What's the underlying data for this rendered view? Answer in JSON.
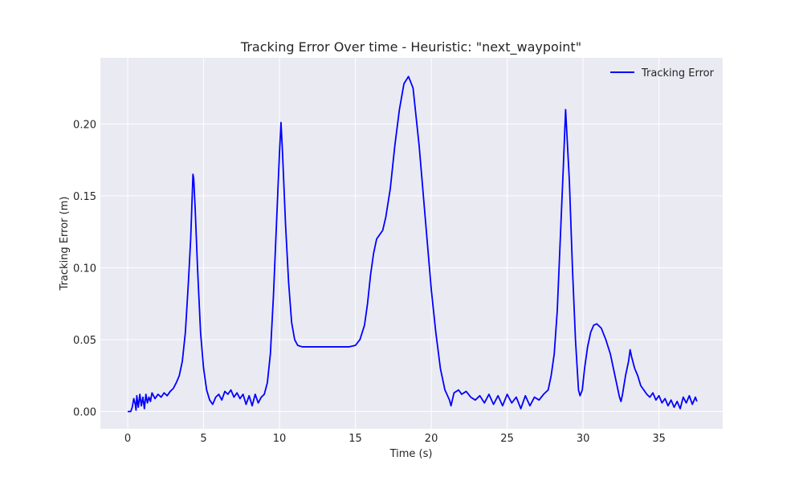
{
  "colors": {
    "plot_background": "#eaeaf2",
    "grid": "#ffffff",
    "series": "#0000ff",
    "text": "#262626"
  },
  "chart_data": {
    "type": "line",
    "title": "Tracking Error Over time - Heuristic: \"next_waypoint\"",
    "xlabel": "Time (s)",
    "ylabel": "Tracking Error (m)",
    "xlim": [
      -1.8,
      39.2
    ],
    "ylim": [
      -0.012,
      0.246
    ],
    "x_ticks": [
      0,
      5,
      10,
      15,
      20,
      25,
      30,
      35
    ],
    "x_tick_labels": [
      "0",
      "5",
      "10",
      "15",
      "20",
      "25",
      "30",
      "35"
    ],
    "y_ticks": [
      0.0,
      0.05,
      0.1,
      0.15,
      0.2
    ],
    "y_tick_labels": [
      "0.00",
      "0.05",
      "0.10",
      "0.15",
      "0.20"
    ],
    "grid": true,
    "legend_position": "top-right",
    "series": [
      {
        "name": "Tracking Error",
        "color": "#0000ff",
        "points": [
          [
            0.0,
            0.0
          ],
          [
            0.2,
            0.0
          ],
          [
            0.3,
            0.003
          ],
          [
            0.4,
            0.009
          ],
          [
            0.5,
            0.005
          ],
          [
            0.55,
            0.001
          ],
          [
            0.6,
            0.011
          ],
          [
            0.7,
            0.003
          ],
          [
            0.8,
            0.012
          ],
          [
            0.9,
            0.004
          ],
          [
            1.0,
            0.01
          ],
          [
            1.1,
            0.002
          ],
          [
            1.2,
            0.012
          ],
          [
            1.3,
            0.006
          ],
          [
            1.4,
            0.01
          ],
          [
            1.5,
            0.007
          ],
          [
            1.6,
            0.013
          ],
          [
            1.8,
            0.009
          ],
          [
            2.0,
            0.012
          ],
          [
            2.2,
            0.01
          ],
          [
            2.4,
            0.013
          ],
          [
            2.6,
            0.011
          ],
          [
            2.8,
            0.014
          ],
          [
            3.0,
            0.016
          ],
          [
            3.2,
            0.02
          ],
          [
            3.4,
            0.025
          ],
          [
            3.6,
            0.035
          ],
          [
            3.8,
            0.055
          ],
          [
            4.0,
            0.09
          ],
          [
            4.15,
            0.12
          ],
          [
            4.25,
            0.15
          ],
          [
            4.3,
            0.165
          ],
          [
            4.35,
            0.162
          ],
          [
            4.45,
            0.14
          ],
          [
            4.6,
            0.1
          ],
          [
            4.8,
            0.055
          ],
          [
            5.0,
            0.03
          ],
          [
            5.2,
            0.015
          ],
          [
            5.4,
            0.008
          ],
          [
            5.6,
            0.005
          ],
          [
            5.8,
            0.01
          ],
          [
            6.0,
            0.012
          ],
          [
            6.2,
            0.008
          ],
          [
            6.4,
            0.014
          ],
          [
            6.6,
            0.012
          ],
          [
            6.8,
            0.015
          ],
          [
            7.0,
            0.01
          ],
          [
            7.2,
            0.013
          ],
          [
            7.4,
            0.009
          ],
          [
            7.6,
            0.012
          ],
          [
            7.8,
            0.005
          ],
          [
            8.0,
            0.011
          ],
          [
            8.2,
            0.004
          ],
          [
            8.4,
            0.012
          ],
          [
            8.6,
            0.006
          ],
          [
            8.8,
            0.01
          ],
          [
            9.0,
            0.012
          ],
          [
            9.2,
            0.02
          ],
          [
            9.4,
            0.04
          ],
          [
            9.6,
            0.08
          ],
          [
            9.8,
            0.13
          ],
          [
            10.0,
            0.18
          ],
          [
            10.1,
            0.201
          ],
          [
            10.2,
            0.18
          ],
          [
            10.4,
            0.13
          ],
          [
            10.6,
            0.09
          ],
          [
            10.8,
            0.062
          ],
          [
            11.0,
            0.05
          ],
          [
            11.2,
            0.046
          ],
          [
            11.5,
            0.045
          ],
          [
            12.0,
            0.045
          ],
          [
            13.0,
            0.045
          ],
          [
            14.0,
            0.045
          ],
          [
            14.6,
            0.045
          ],
          [
            15.0,
            0.046
          ],
          [
            15.3,
            0.05
          ],
          [
            15.6,
            0.06
          ],
          [
            15.8,
            0.075
          ],
          [
            16.0,
            0.095
          ],
          [
            16.2,
            0.11
          ],
          [
            16.4,
            0.12
          ],
          [
            16.6,
            0.123
          ],
          [
            16.8,
            0.126
          ],
          [
            17.0,
            0.135
          ],
          [
            17.3,
            0.155
          ],
          [
            17.6,
            0.185
          ],
          [
            17.9,
            0.21
          ],
          [
            18.2,
            0.228
          ],
          [
            18.5,
            0.233
          ],
          [
            18.8,
            0.225
          ],
          [
            19.0,
            0.205
          ],
          [
            19.2,
            0.185
          ],
          [
            19.4,
            0.16
          ],
          [
            19.6,
            0.135
          ],
          [
            19.8,
            0.11
          ],
          [
            20.0,
            0.085
          ],
          [
            20.3,
            0.055
          ],
          [
            20.6,
            0.03
          ],
          [
            20.9,
            0.015
          ],
          [
            21.2,
            0.008
          ],
          [
            21.3,
            0.004
          ],
          [
            21.5,
            0.013
          ],
          [
            21.8,
            0.015
          ],
          [
            22.0,
            0.012
          ],
          [
            22.3,
            0.014
          ],
          [
            22.6,
            0.01
          ],
          [
            22.9,
            0.008
          ],
          [
            23.2,
            0.011
          ],
          [
            23.5,
            0.006
          ],
          [
            23.8,
            0.012
          ],
          [
            24.1,
            0.005
          ],
          [
            24.4,
            0.011
          ],
          [
            24.7,
            0.004
          ],
          [
            25.0,
            0.012
          ],
          [
            25.3,
            0.006
          ],
          [
            25.6,
            0.01
          ],
          [
            25.9,
            0.002
          ],
          [
            26.2,
            0.011
          ],
          [
            26.5,
            0.004
          ],
          [
            26.8,
            0.01
          ],
          [
            27.1,
            0.008
          ],
          [
            27.4,
            0.012
          ],
          [
            27.7,
            0.015
          ],
          [
            27.9,
            0.025
          ],
          [
            28.1,
            0.04
          ],
          [
            28.3,
            0.07
          ],
          [
            28.5,
            0.12
          ],
          [
            28.7,
            0.17
          ],
          [
            28.85,
            0.21
          ],
          [
            28.95,
            0.19
          ],
          [
            29.1,
            0.16
          ],
          [
            29.3,
            0.1
          ],
          [
            29.5,
            0.05
          ],
          [
            29.7,
            0.015
          ],
          [
            29.8,
            0.011
          ],
          [
            29.95,
            0.015
          ],
          [
            30.1,
            0.03
          ],
          [
            30.3,
            0.045
          ],
          [
            30.5,
            0.055
          ],
          [
            30.7,
            0.06
          ],
          [
            30.9,
            0.061
          ],
          [
            31.2,
            0.058
          ],
          [
            31.5,
            0.05
          ],
          [
            31.8,
            0.04
          ],
          [
            32.0,
            0.03
          ],
          [
            32.2,
            0.02
          ],
          [
            32.4,
            0.01
          ],
          [
            32.5,
            0.007
          ],
          [
            32.6,
            0.012
          ],
          [
            32.8,
            0.025
          ],
          [
            33.0,
            0.035
          ],
          [
            33.1,
            0.043
          ],
          [
            33.2,
            0.038
          ],
          [
            33.4,
            0.03
          ],
          [
            33.6,
            0.025
          ],
          [
            33.8,
            0.018
          ],
          [
            34.0,
            0.015
          ],
          [
            34.2,
            0.012
          ],
          [
            34.4,
            0.01
          ],
          [
            34.6,
            0.013
          ],
          [
            34.8,
            0.008
          ],
          [
            35.0,
            0.011
          ],
          [
            35.2,
            0.006
          ],
          [
            35.4,
            0.009
          ],
          [
            35.6,
            0.004
          ],
          [
            35.8,
            0.008
          ],
          [
            36.0,
            0.003
          ],
          [
            36.2,
            0.007
          ],
          [
            36.4,
            0.002
          ],
          [
            36.6,
            0.01
          ],
          [
            36.8,
            0.006
          ],
          [
            37.0,
            0.011
          ],
          [
            37.2,
            0.005
          ],
          [
            37.4,
            0.01
          ],
          [
            37.5,
            0.007
          ]
        ]
      }
    ]
  }
}
